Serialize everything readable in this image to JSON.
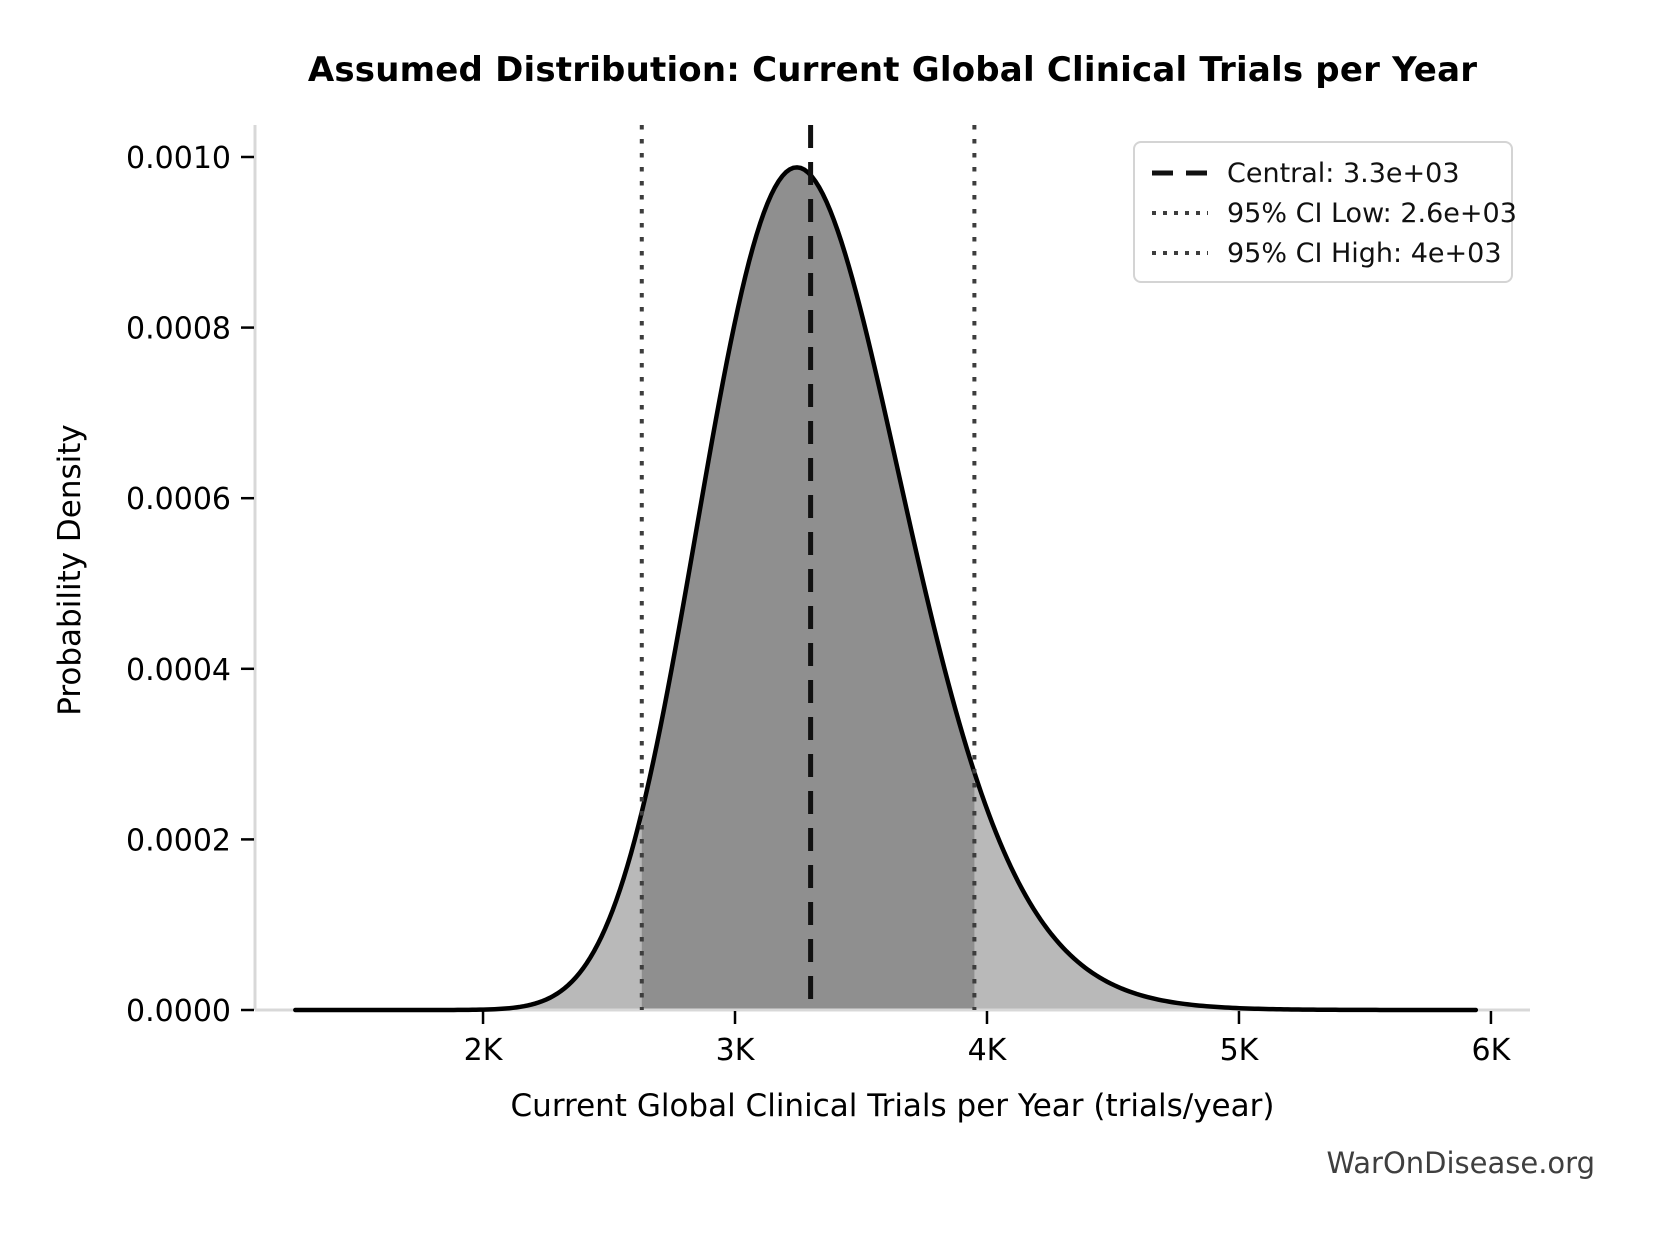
{
  "watermark": "WarOnDisease.org",
  "chart_data": {
    "type": "area",
    "title": "Assumed Distribution: Current Global Clinical Trials per Year",
    "xlabel": "Current Global Clinical Trials per Year (trials/year)",
    "ylabel": "Probability Density",
    "xlim": [
      1095,
      6155
    ],
    "ylim": [
      0,
      0.0010375
    ],
    "grid": false,
    "legend_position": "upper right",
    "x_ticks": [
      {
        "value": 2000,
        "label": "2K"
      },
      {
        "value": 3000,
        "label": "3K"
      },
      {
        "value": 4000,
        "label": "4K"
      },
      {
        "value": 5000,
        "label": "5K"
      },
      {
        "value": 6000,
        "label": "6K"
      }
    ],
    "y_ticks": [
      {
        "value": 0.0,
        "label": "0.0000"
      },
      {
        "value": 0.0002,
        "label": "0.0002"
      },
      {
        "value": 0.0004,
        "label": "0.0004"
      },
      {
        "value": 0.0006,
        "label": "0.0006"
      },
      {
        "value": 0.0008,
        "label": "0.0008"
      },
      {
        "value": 0.001,
        "label": "0.0010"
      }
    ],
    "distribution": {
      "family": "lognormal",
      "median": 3295,
      "sigma": 0.1235,
      "curve_range": [
        1255,
        5940
      ],
      "peak_density_approx": 0.00099,
      "peak_x_approx": 3245
    },
    "ci_fill_between": [
      2630,
      3950
    ],
    "vlines": [
      {
        "id": "central",
        "value": 3300,
        "style": "dashed",
        "color": "#111111",
        "label": "Central: 3.3e+03"
      },
      {
        "id": "ci_low",
        "value": 2630,
        "style": "dotted",
        "color": "#3d3d3d",
        "label": "95% CI Low: 2.6e+03"
      },
      {
        "id": "ci_high",
        "value": 3950,
        "style": "dotted",
        "color": "#3d3d3d",
        "label": "95% CI High: 4e+03"
      }
    ],
    "colors": {
      "curve": "#000000",
      "fill_inner": "#8f8f8f",
      "fill_outer": "#b9b9b9",
      "spine": "#d8d8d8",
      "tick": "#000000",
      "tick_label": "#000000"
    }
  }
}
